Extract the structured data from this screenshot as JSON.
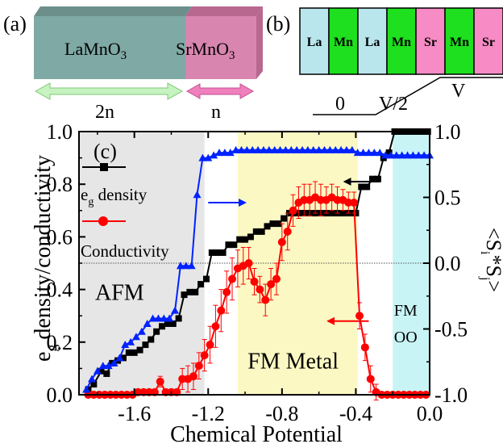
{
  "panel_a": {
    "label": "(a)",
    "block_left": "LaMnO",
    "block_left_sub": "3",
    "block_right": "SrMnO",
    "block_right_sub": "3",
    "arrow_left_label": "2n",
    "arrow_right_label": "n",
    "colors": {
      "left": "#7fa9a4",
      "right": "#d885b0",
      "arrow_left": "#c6f3bf",
      "arrow_right": "#f07fbd"
    }
  },
  "panel_b": {
    "label": "(b)",
    "cells": [
      {
        "text": "La",
        "color": "#b9e6ec"
      },
      {
        "text": "Mn",
        "color": "#1ee01e"
      },
      {
        "text": "La",
        "color": "#b9e6ec"
      },
      {
        "text": "Mn",
        "color": "#1ee01e"
      },
      {
        "text": "Sr",
        "color": "#f78bc5"
      },
      {
        "text": "Mn",
        "color": "#1ee01e"
      },
      {
        "text": "Sr",
        "color": "#f78bc5"
      }
    ],
    "potential_labels": {
      "zero": "0",
      "half": "V/2",
      "full": "V"
    }
  },
  "chart_data": {
    "type": "line",
    "panel_label": "(c)",
    "xlabel": "Chemical Potential",
    "ylabel_left": "density/conductivity",
    "ylabel_left_prefix": "e",
    "ylabel_left_sub": "g",
    "ylabel_right": "<S",
    "ylabel_right_sub1": "i",
    "ylabel_right_mid": "*S",
    "ylabel_right_sub2": "j",
    "ylabel_right_end": ">",
    "xlim": [
      -1.9,
      0.0
    ],
    "ylim_left": [
      0,
      1.0
    ],
    "ylim_right": [
      -1.0,
      1.0
    ],
    "xticks": [
      -1.6,
      -1.2,
      -0.8,
      -0.4,
      0.0
    ],
    "xtick_labels": [
      "-1.6",
      "-1.2",
      "-0.8",
      "-0.4",
      "0.0"
    ],
    "yticks_left": [
      0.0,
      0.2,
      0.4,
      0.6,
      0.8,
      1.0
    ],
    "yticks_left_labels": [
      "0.0",
      "0.2",
      "0.4",
      "0.6",
      "0.8",
      "1.0"
    ],
    "yticks_right": [
      -1.0,
      -0.5,
      0.0,
      0.5,
      1.0
    ],
    "yticks_right_labels": [
      "-1.0",
      "-0.5",
      "0.0",
      "0.5",
      "1.0"
    ],
    "reference_line_left": 0.5,
    "regions": [
      {
        "x0": -1.9,
        "x1": -1.22,
        "color": "#e6e6e6",
        "label": "AFM",
        "label_x": -1.68,
        "label_y": 0.36
      },
      {
        "x0": -1.04,
        "x1": -0.39,
        "color": "#fbf8c3",
        "label": "FM Metal",
        "label_x": -0.74,
        "label_y": 0.1
      },
      {
        "x0": -0.2,
        "x1": 0.0,
        "color": "#c9f4f6",
        "label": "FM",
        "label2": "OO",
        "label_x": -0.13,
        "label_y": 0.3,
        "label2_y": 0.2
      }
    ],
    "legend": [
      {
        "label": "e",
        "label_sub": "g",
        "label_rest": " density",
        "color": "#000000",
        "marker": "square"
      },
      {
        "label": "Conductivity",
        "color": "#ff0000",
        "marker": "circle"
      }
    ],
    "series": [
      {
        "name": "e_g density",
        "axis": "left",
        "color": "#000000",
        "marker": "square",
        "x": [
          -1.85,
          -1.82,
          -1.78,
          -1.75,
          -1.72,
          -1.69,
          -1.66,
          -1.63,
          -1.6,
          -1.57,
          -1.54,
          -1.51,
          -1.48,
          -1.45,
          -1.42,
          -1.39,
          -1.36,
          -1.33,
          -1.3,
          -1.27,
          -1.24,
          -1.21,
          -1.18,
          -1.15,
          -1.12,
          -1.09,
          -1.06,
          -1.03,
          -1.0,
          -0.97,
          -0.94,
          -0.91,
          -0.88,
          -0.85,
          -0.82,
          -0.79,
          -0.76,
          -0.73,
          -0.7,
          -0.67,
          -0.64,
          -0.61,
          -0.58,
          -0.55,
          -0.52,
          -0.49,
          -0.46,
          -0.43,
          -0.4,
          -0.37,
          -0.34,
          -0.31,
          -0.28,
          -0.25,
          -0.22,
          -0.19,
          -0.16,
          -0.13,
          -0.1,
          -0.07,
          -0.04,
          -0.01
        ],
        "y": [
          0.02,
          0.04,
          0.09,
          0.08,
          0.12,
          0.13,
          0.14,
          0.16,
          0.16,
          0.17,
          0.19,
          0.21,
          0.24,
          0.26,
          0.27,
          0.27,
          0.29,
          0.38,
          0.39,
          0.39,
          0.42,
          0.44,
          0.54,
          0.54,
          0.54,
          0.57,
          0.57,
          0.59,
          0.59,
          0.6,
          0.62,
          0.62,
          0.64,
          0.65,
          0.65,
          0.67,
          0.69,
          0.69,
          0.69,
          0.69,
          0.69,
          0.69,
          0.69,
          0.69,
          0.69,
          0.69,
          0.69,
          0.69,
          0.69,
          0.79,
          0.79,
          0.82,
          0.82,
          0.9,
          0.92,
          1.0,
          1.0,
          1.0,
          1.0,
          1.0,
          1.0,
          1.0
        ]
      },
      {
        "name": "Conductivity",
        "axis": "left",
        "color": "#ff0000",
        "marker": "circle",
        "x": [
          -1.85,
          -1.82,
          -1.79,
          -1.76,
          -1.73,
          -1.7,
          -1.67,
          -1.64,
          -1.61,
          -1.58,
          -1.55,
          -1.52,
          -1.49,
          -1.46,
          -1.43,
          -1.4,
          -1.37,
          -1.34,
          -1.31,
          -1.28,
          -1.25,
          -1.22,
          -1.19,
          -1.16,
          -1.13,
          -1.1,
          -1.07,
          -1.04,
          -1.01,
          -0.98,
          -0.95,
          -0.92,
          -0.89,
          -0.86,
          -0.83,
          -0.8,
          -0.77,
          -0.74,
          -0.71,
          -0.68,
          -0.65,
          -0.62,
          -0.59,
          -0.56,
          -0.53,
          -0.5,
          -0.47,
          -0.44,
          -0.41,
          -0.38,
          -0.35,
          -0.32,
          -0.29,
          -0.26,
          -0.23,
          -0.2,
          -0.17,
          -0.14,
          -0.11,
          -0.08,
          -0.05,
          -0.02
        ],
        "y": [
          0.0,
          0.0,
          0.0,
          0.0,
          0.0,
          0.0,
          0.0,
          0.0,
          0.0,
          0.01,
          0.01,
          0.01,
          0.01,
          0.05,
          0.01,
          0.01,
          0.01,
          0.06,
          0.06,
          0.07,
          0.11,
          0.15,
          0.19,
          0.26,
          0.32,
          0.39,
          0.44,
          0.48,
          0.49,
          0.5,
          0.43,
          0.4,
          0.36,
          0.42,
          0.44,
          0.58,
          0.62,
          0.7,
          0.73,
          0.74,
          0.74,
          0.75,
          0.74,
          0.74,
          0.75,
          0.74,
          0.74,
          0.73,
          0.73,
          0.3,
          0.18,
          0.06,
          0.01,
          0.0,
          0.0,
          0.0,
          0.0,
          0.0,
          0.0,
          0.0,
          0.0,
          0.0
        ],
        "err": [
          0,
          0,
          0,
          0,
          0,
          0,
          0,
          0,
          0,
          0,
          0,
          0,
          0,
          0.02,
          0,
          0,
          0,
          0.04,
          0.05,
          0.05,
          0.05,
          0.06,
          0.07,
          0.08,
          0.08,
          0.08,
          0.08,
          0.07,
          0.07,
          0.06,
          0.05,
          0.05,
          0.06,
          0.06,
          0.06,
          0.07,
          0.07,
          0.06,
          0.06,
          0.06,
          0.06,
          0.06,
          0.06,
          0.05,
          0.05,
          0.05,
          0.04,
          0.04,
          0.04,
          0.05,
          0.05,
          0.05,
          0.03,
          0,
          0,
          0,
          0,
          0,
          0,
          0,
          0,
          0
        ]
      },
      {
        "name": "<Si*Sj>",
        "axis": "right",
        "color": "#0022ff",
        "marker": "triangle",
        "x": [
          -1.86,
          -1.83,
          -1.8,
          -1.77,
          -1.74,
          -1.71,
          -1.68,
          -1.65,
          -1.62,
          -1.59,
          -1.56,
          -1.53,
          -1.5,
          -1.47,
          -1.44,
          -1.41,
          -1.38,
          -1.35,
          -1.32,
          -1.29,
          -1.26,
          -1.23,
          -1.2,
          -1.17,
          -1.14,
          -1.11,
          -1.08,
          -1.05,
          -1.02,
          -0.99,
          -0.96,
          -0.93,
          -0.9,
          -0.87,
          -0.84,
          -0.81,
          -0.78,
          -0.75,
          -0.72,
          -0.69,
          -0.66,
          -0.63,
          -0.6,
          -0.57,
          -0.54,
          -0.51,
          -0.48,
          -0.45,
          -0.42,
          -0.39,
          -0.36,
          -0.33,
          -0.3,
          -0.27,
          -0.24,
          -0.21,
          -0.18,
          -0.15,
          -0.12,
          -0.09,
          -0.06,
          -0.03,
          0.0
        ],
        "y": [
          -0.96,
          -0.88,
          -0.82,
          -0.78,
          -0.78,
          -0.76,
          -0.72,
          -0.62,
          -0.6,
          -0.56,
          -0.52,
          -0.46,
          -0.42,
          -0.42,
          -0.42,
          -0.42,
          -0.36,
          -0.02,
          -0.02,
          -0.02,
          0.52,
          0.8,
          0.8,
          0.82,
          0.84,
          0.84,
          0.84,
          0.86,
          0.86,
          0.86,
          0.86,
          0.86,
          0.86,
          0.86,
          0.86,
          0.86,
          0.86,
          0.86,
          0.86,
          0.86,
          0.86,
          0.86,
          0.86,
          0.86,
          0.86,
          0.86,
          0.86,
          0.86,
          0.86,
          0.84,
          0.84,
          0.84,
          0.84,
          0.84,
          0.82,
          0.82,
          0.82,
          0.82,
          0.82,
          0.82,
          0.82,
          0.82,
          0.82
        ]
      }
    ],
    "arrows": [
      {
        "direction": "right",
        "color": "#0022ff",
        "x0": -1.2,
        "x1": -1.0,
        "y": 0.73
      },
      {
        "direction": "left",
        "color": "#000000",
        "x0": -0.27,
        "x1": -0.46,
        "y": 0.81
      },
      {
        "direction": "left",
        "color": "#ff0000",
        "x0": -0.33,
        "x1": -0.55,
        "y": 0.28
      }
    ]
  }
}
